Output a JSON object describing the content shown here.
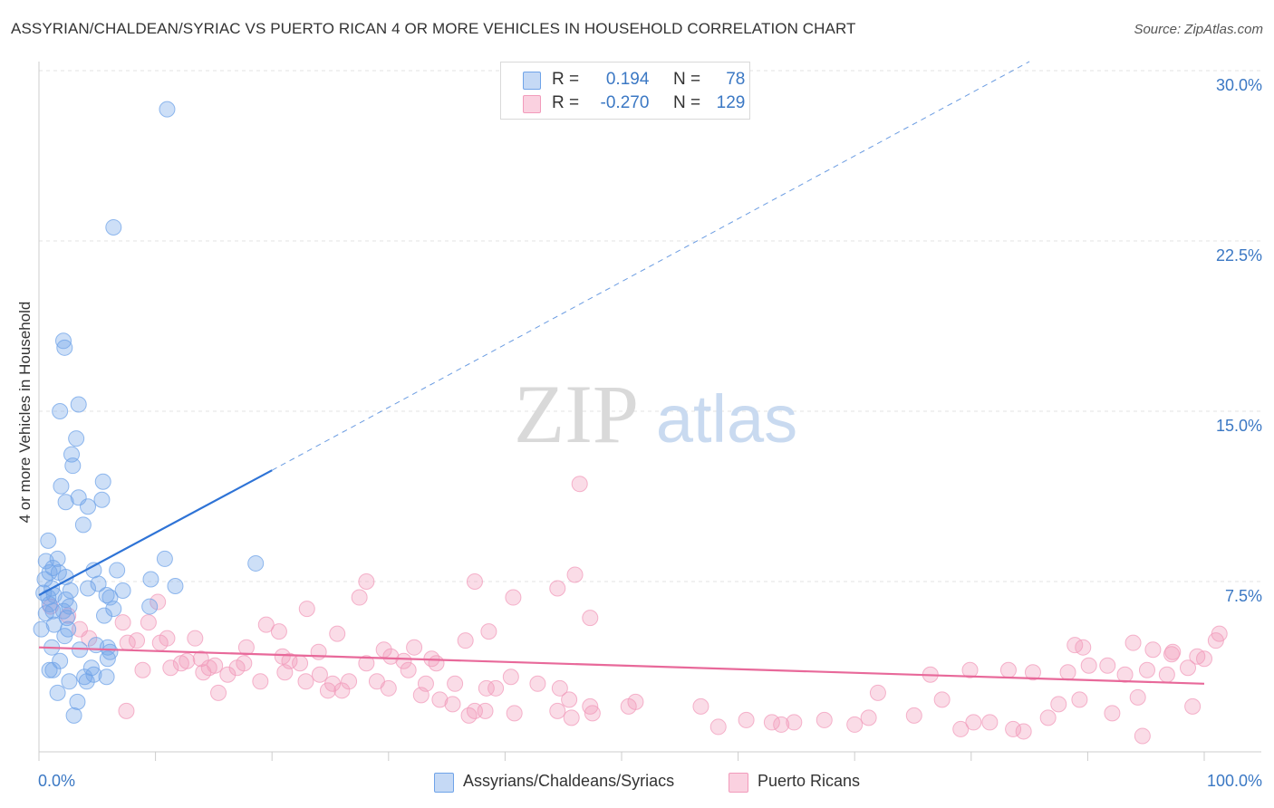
{
  "title": "ASSYRIAN/CHALDEAN/SYRIAC VS PUERTO RICAN 4 OR MORE VEHICLES IN HOUSEHOLD CORRELATION CHART",
  "source": "Source: ZipAtlas.com",
  "watermark": {
    "zip": "ZIP",
    "atlas": "atlas"
  },
  "colors": {
    "blue": "#6fa3e8",
    "blue_line": "#2e73d6",
    "pink": "#f29bbb",
    "pink_line": "#e8699a",
    "tick_text": "#3b78c4"
  },
  "stats": [
    {
      "r_label": "R =",
      "r_value": "0.194",
      "n_label": "N =",
      "n_value": "78"
    },
    {
      "r_label": "R =",
      "r_value": "-0.270",
      "n_label": "N =",
      "n_value": "129"
    }
  ],
  "legend": [
    "Assyrians/Chaldeans/Syriacs",
    "Puerto Ricans"
  ],
  "chart_data": {
    "type": "scatter",
    "title": "ASSYRIAN/CHALDEAN/SYRIAC VS PUERTO RICAN 4 OR MORE VEHICLES IN HOUSEHOLD CORRELATION CHART",
    "xlabel": "",
    "ylabel": "4 or more Vehicles in Household",
    "x_tick_labels": [
      "0.0%",
      "100.0%"
    ],
    "y_tick_labels": [
      "7.5%",
      "15.0%",
      "22.5%",
      "30.0%"
    ],
    "y_ticks": [
      7.5,
      15.0,
      22.5,
      30.0
    ],
    "xlim": [
      0,
      100
    ],
    "ylim": [
      0,
      30.9
    ],
    "legend_position": "bottom-center",
    "series": [
      {
        "name": "Assyrians/Chaldeans/Syriacs",
        "color": "#6fa3e8",
        "trend": {
          "x0": 0.0,
          "y0": 6.9,
          "x1": 20.0,
          "y1": 12.4,
          "dashed_to_x": 85.0,
          "dashed_to_y": 30.4
        },
        "points": [
          [
            11.0,
            28.3
          ],
          [
            6.4,
            23.1
          ],
          [
            2.1,
            18.1
          ],
          [
            2.2,
            17.8
          ],
          [
            3.4,
            15.3
          ],
          [
            1.8,
            15.0
          ],
          [
            3.2,
            13.8
          ],
          [
            2.8,
            13.1
          ],
          [
            2.9,
            12.6
          ],
          [
            5.5,
            11.9
          ],
          [
            1.9,
            11.7
          ],
          [
            3.4,
            11.2
          ],
          [
            5.4,
            11.1
          ],
          [
            2.3,
            11.0
          ],
          [
            4.2,
            10.8
          ],
          [
            3.8,
            10.0
          ],
          [
            0.8,
            9.3
          ],
          [
            10.8,
            8.5
          ],
          [
            18.6,
            8.3
          ],
          [
            0.6,
            8.4
          ],
          [
            1.6,
            8.5
          ],
          [
            1.2,
            8.1
          ],
          [
            0.9,
            7.9
          ],
          [
            1.7,
            7.9
          ],
          [
            2.3,
            7.7
          ],
          [
            4.7,
            8.0
          ],
          [
            6.7,
            8.0
          ],
          [
            9.6,
            7.6
          ],
          [
            0.5,
            7.6
          ],
          [
            1.1,
            7.2
          ],
          [
            2.7,
            7.1
          ],
          [
            4.2,
            7.2
          ],
          [
            5.1,
            7.4
          ],
          [
            7.2,
            7.1
          ],
          [
            11.7,
            7.3
          ],
          [
            0.4,
            7.0
          ],
          [
            1.3,
            6.9
          ],
          [
            0.8,
            6.8
          ],
          [
            5.8,
            6.9
          ],
          [
            6.1,
            6.8
          ],
          [
            2.3,
            6.7
          ],
          [
            0.9,
            6.5
          ],
          [
            2.6,
            6.4
          ],
          [
            6.4,
            6.3
          ],
          [
            9.5,
            6.4
          ],
          [
            1.2,
            6.2
          ],
          [
            0.6,
            6.1
          ],
          [
            2.1,
            6.2
          ],
          [
            5.6,
            6.0
          ],
          [
            2.4,
            5.9
          ],
          [
            1.3,
            5.6
          ],
          [
            0.2,
            5.4
          ],
          [
            2.5,
            5.4
          ],
          [
            2.2,
            5.1
          ],
          [
            4.9,
            4.7
          ],
          [
            5.9,
            4.6
          ],
          [
            1.1,
            4.6
          ],
          [
            3.5,
            4.5
          ],
          [
            6.1,
            4.4
          ],
          [
            1.8,
            4.0
          ],
          [
            5.9,
            4.1
          ],
          [
            1.2,
            3.6
          ],
          [
            4.5,
            3.7
          ],
          [
            0.9,
            3.6
          ],
          [
            4.7,
            3.4
          ],
          [
            5.8,
            3.3
          ],
          [
            3.9,
            3.3
          ],
          [
            4.1,
            3.1
          ],
          [
            2.6,
            3.1
          ],
          [
            1.6,
            2.6
          ],
          [
            3.3,
            2.2
          ],
          [
            3.0,
            1.6
          ]
        ]
      },
      {
        "name": "Puerto Ricans",
        "color": "#f29bbb",
        "trend": {
          "x0": 0.0,
          "y0": 4.6,
          "x1": 100.0,
          "y1": 3.0
        },
        "points": [
          [
            46.4,
            11.8
          ],
          [
            46.0,
            7.8
          ],
          [
            28.1,
            7.5
          ],
          [
            37.4,
            7.5
          ],
          [
            44.5,
            7.2
          ],
          [
            27.5,
            6.8
          ],
          [
            40.7,
            6.8
          ],
          [
            1.0,
            6.4
          ],
          [
            2.5,
            6.0
          ],
          [
            7.2,
            5.7
          ],
          [
            9.4,
            5.7
          ],
          [
            13.4,
            5.0
          ],
          [
            19.5,
            5.6
          ],
          [
            20.6,
            5.3
          ],
          [
            25.6,
            5.2
          ],
          [
            38.6,
            5.3
          ],
          [
            47.3,
            5.9
          ],
          [
            23.0,
            6.3
          ],
          [
            10.2,
            6.6
          ],
          [
            3.5,
            5.4
          ],
          [
            4.3,
            5.0
          ],
          [
            7.6,
            4.8
          ],
          [
            8.4,
            4.9
          ],
          [
            10.4,
            4.8
          ],
          [
            11.0,
            5.0
          ],
          [
            12.7,
            4.0
          ],
          [
            13.9,
            4.1
          ],
          [
            14.6,
            3.7
          ],
          [
            17.8,
            4.6
          ],
          [
            20.9,
            4.2
          ],
          [
            21.5,
            4.0
          ],
          [
            22.4,
            3.9
          ],
          [
            24.0,
            4.4
          ],
          [
            29.6,
            4.5
          ],
          [
            30.2,
            4.2
          ],
          [
            31.3,
            4.0
          ],
          [
            33.7,
            4.1
          ],
          [
            34.1,
            3.9
          ],
          [
            36.6,
            4.9
          ],
          [
            8.9,
            3.6
          ],
          [
            11.3,
            3.7
          ],
          [
            12.2,
            3.9
          ],
          [
            14.1,
            3.5
          ],
          [
            15.1,
            3.8
          ],
          [
            16.2,
            3.4
          ],
          [
            17.0,
            3.7
          ],
          [
            17.6,
            3.9
          ],
          [
            19.0,
            3.1
          ],
          [
            21.1,
            3.5
          ],
          [
            22.9,
            3.1
          ],
          [
            25.2,
            3.0
          ],
          [
            26.6,
            3.1
          ],
          [
            28.1,
            3.9
          ],
          [
            29.0,
            3.1
          ],
          [
            31.7,
            3.6
          ],
          [
            32.2,
            4.6
          ],
          [
            33.2,
            3.0
          ],
          [
            35.7,
            3.0
          ],
          [
            38.4,
            2.8
          ],
          [
            39.2,
            2.8
          ],
          [
            40.5,
            3.3
          ],
          [
            42.8,
            3.0
          ],
          [
            44.7,
            2.8
          ],
          [
            45.5,
            2.3
          ],
          [
            47.3,
            2.0
          ],
          [
            50.6,
            2.0
          ],
          [
            26.0,
            2.7
          ],
          [
            24.8,
            2.7
          ],
          [
            24.1,
            3.4
          ],
          [
            15.4,
            2.6
          ],
          [
            7.5,
            1.8
          ],
          [
            30.0,
            2.8
          ],
          [
            32.8,
            2.5
          ],
          [
            34.4,
            2.3
          ],
          [
            35.5,
            2.1
          ],
          [
            36.9,
            1.6
          ],
          [
            37.4,
            1.8
          ],
          [
            38.3,
            1.8
          ],
          [
            40.8,
            1.7
          ],
          [
            44.5,
            1.8
          ],
          [
            45.7,
            1.5
          ],
          [
            47.5,
            1.7
          ],
          [
            51.2,
            2.2
          ],
          [
            56.8,
            2.0
          ],
          [
            58.3,
            1.1
          ],
          [
            60.7,
            1.4
          ],
          [
            62.9,
            1.3
          ],
          [
            63.7,
            1.2
          ],
          [
            64.8,
            1.3
          ],
          [
            67.4,
            1.4
          ],
          [
            70.0,
            1.2
          ],
          [
            72.0,
            2.6
          ],
          [
            71.2,
            1.5
          ],
          [
            75.1,
            1.6
          ],
          [
            77.5,
            2.3
          ],
          [
            79.1,
            1.0
          ],
          [
            80.2,
            1.3
          ],
          [
            81.6,
            1.3
          ],
          [
            83.6,
            1.0
          ],
          [
            84.5,
            0.9
          ],
          [
            86.6,
            1.5
          ],
          [
            87.5,
            2.1
          ],
          [
            89.3,
            2.3
          ],
          [
            94.3,
            2.4
          ],
          [
            92.1,
            1.7
          ],
          [
            94.7,
            0.7
          ],
          [
            99.0,
            2.0
          ],
          [
            76.5,
            3.4
          ],
          [
            79.9,
            3.6
          ],
          [
            83.2,
            3.6
          ],
          [
            85.3,
            3.5
          ],
          [
            88.3,
            3.5
          ],
          [
            90.1,
            3.8
          ],
          [
            91.7,
            3.8
          ],
          [
            93.2,
            3.4
          ],
          [
            95.1,
            3.6
          ],
          [
            96.8,
            3.4
          ],
          [
            98.6,
            3.7
          ],
          [
            100.0,
            4.1
          ],
          [
            89.6,
            4.6
          ],
          [
            93.9,
            4.8
          ],
          [
            95.6,
            4.5
          ],
          [
            97.3,
            4.4
          ],
          [
            99.4,
            4.2
          ],
          [
            101.0,
            4.9
          ],
          [
            101.3,
            5.2
          ],
          [
            88.9,
            4.7
          ],
          [
            97.2,
            4.3
          ]
        ]
      }
    ]
  }
}
